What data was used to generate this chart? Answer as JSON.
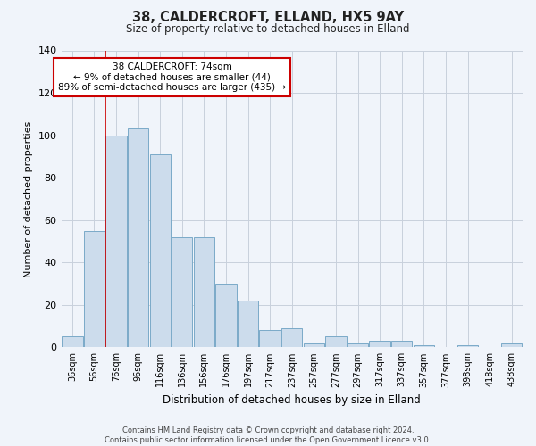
{
  "title": "38, CALDERCROFT, ELLAND, HX5 9AY",
  "subtitle": "Size of property relative to detached houses in Elland",
  "xlabel": "Distribution of detached houses by size in Elland",
  "ylabel": "Number of detached properties",
  "categories": [
    "36sqm",
    "56sqm",
    "76sqm",
    "96sqm",
    "116sqm",
    "136sqm",
    "156sqm",
    "176sqm",
    "197sqm",
    "217sqm",
    "237sqm",
    "257sqm",
    "277sqm",
    "297sqm",
    "317sqm",
    "337sqm",
    "357sqm",
    "377sqm",
    "398sqm",
    "418sqm",
    "438sqm"
  ],
  "values": [
    5,
    55,
    100,
    103,
    91,
    52,
    52,
    30,
    22,
    8,
    9,
    2,
    5,
    2,
    3,
    3,
    1,
    0,
    1,
    0,
    2
  ],
  "bar_color": "#ccdcec",
  "bar_edge_color": "#7aaac8",
  "ylim": [
    0,
    140
  ],
  "yticks": [
    0,
    20,
    40,
    60,
    80,
    100,
    120,
    140
  ],
  "vline_x_index": 1.5,
  "annotation_title": "38 CALDERCROFT: 74sqm",
  "annotation_line1": "← 9% of detached houses are smaller (44)",
  "annotation_line2": "89% of semi-detached houses are larger (435) →",
  "annotation_box_color": "#ffffff",
  "annotation_box_edge_color": "#cc0000",
  "vline_color": "#cc0000",
  "footer1": "Contains HM Land Registry data © Crown copyright and database right 2024.",
  "footer2": "Contains public sector information licensed under the Open Government Licence v3.0.",
  "background_color": "#f0f4fa",
  "grid_color": "#c8d0dc"
}
